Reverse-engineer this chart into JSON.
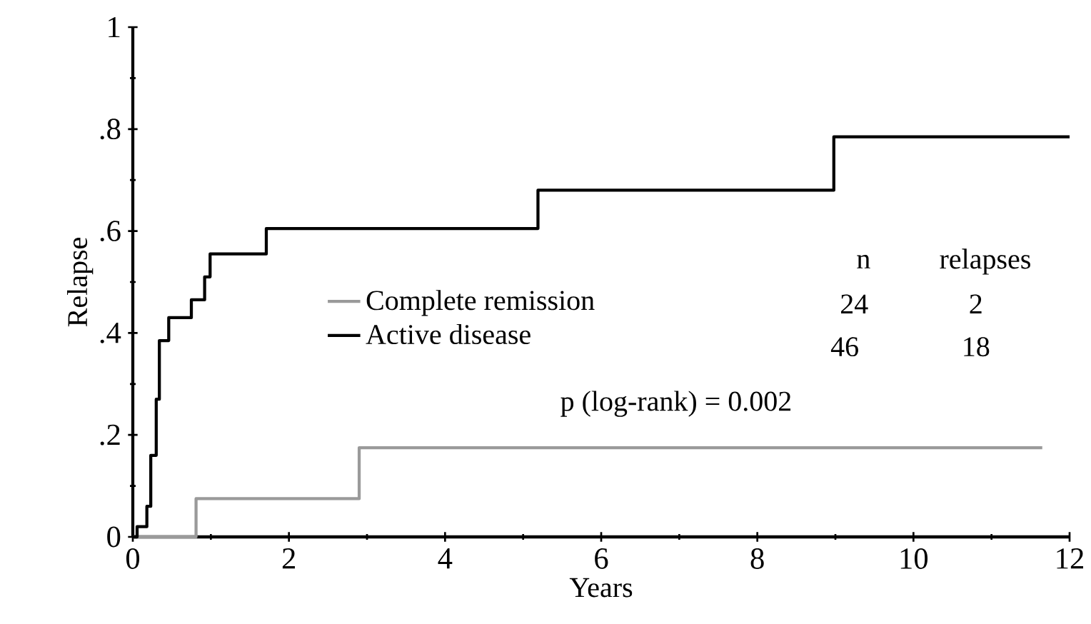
{
  "chart_data": {
    "type": "step",
    "xlabel": "Years",
    "ylabel": "Relapse",
    "xlim": [
      0,
      12
    ],
    "xticks": [
      0,
      2,
      4,
      6,
      8,
      10,
      12
    ],
    "ylim": [
      0,
      1
    ],
    "yticks": [
      {
        "value": 0,
        "label": "0"
      },
      {
        "value": 0.2,
        "label": ".2"
      },
      {
        "value": 0.4,
        "label": ".4"
      },
      {
        "value": 0.6,
        "label": ".6"
      },
      {
        "value": 0.8,
        "label": ".8"
      },
      {
        "value": 1,
        "label": "1"
      }
    ],
    "grid": false,
    "legend": "left",
    "marker": "none",
    "line_style": "solid",
    "series": [
      {
        "name": "Complete remission",
        "color": "#9a9a9a",
        "x": [
          0,
          0.81,
          2.9,
          11.65
        ],
        "values": [
          0,
          0.075,
          0.175,
          0.175
        ]
      },
      {
        "name": "Active disease",
        "color": "#000000",
        "x": [
          0,
          0.055,
          0.18,
          0.23,
          0.3,
          0.34,
          0.46,
          0.75,
          0.92,
          0.99,
          1.71,
          5.19,
          8.98,
          12.0
        ],
        "values": [
          0,
          0.02,
          0.06,
          0.16,
          0.27,
          0.385,
          0.43,
          0.465,
          0.51,
          0.555,
          0.605,
          0.68,
          0.785,
          0.785
        ]
      }
    ],
    "annotations": [
      "n",
      "relapses",
      "24",
      "2",
      "46",
      "18",
      "p (log-rank) = 0.002"
    ]
  }
}
